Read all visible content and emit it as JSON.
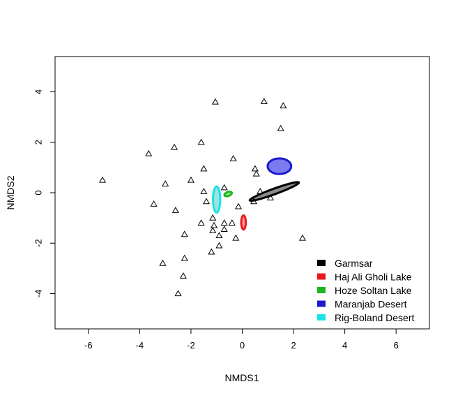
{
  "chart_data": {
    "type": "scatter",
    "xlabel": "NMDS1",
    "ylabel": "NMDS2",
    "xlim": [
      -7.3,
      7.3
    ],
    "ylim": [
      -5.4,
      5.4
    ],
    "xticks": [
      "-6",
      "-4",
      "-2",
      "0",
      "2",
      "4",
      "6"
    ],
    "xtick_values": [
      -6,
      -4,
      -2,
      0,
      2,
      4,
      6
    ],
    "yticks": [
      "-4",
      "-2",
      "0",
      "2",
      "4"
    ],
    "ytick_values": [
      -4,
      -2,
      0,
      2,
      4
    ],
    "grid": false,
    "legend_position": "bottom-right",
    "marker": "open-triangle",
    "points": [
      [
        -1.05,
        3.6
      ],
      [
        0.85,
        3.62
      ],
      [
        1.6,
        3.45
      ],
      [
        1.5,
        2.55
      ],
      [
        -3.65,
        1.55
      ],
      [
        -2.65,
        1.8
      ],
      [
        -1.6,
        2.0
      ],
      [
        -0.35,
        1.35
      ],
      [
        -5.45,
        0.5
      ],
      [
        -3.0,
        0.35
      ],
      [
        -1.5,
        0.95
      ],
      [
        -2.0,
        0.5
      ],
      [
        0.5,
        0.95
      ],
      [
        0.55,
        0.75
      ],
      [
        -0.7,
        0.2
      ],
      [
        0.7,
        0.05
      ],
      [
        -1.5,
        0.05
      ],
      [
        -3.45,
        -0.45
      ],
      [
        -1.4,
        -0.35
      ],
      [
        -0.15,
        -0.55
      ],
      [
        1.1,
        -0.2
      ],
      [
        0.45,
        -0.35
      ],
      [
        -2.6,
        -0.7
      ],
      [
        -1.6,
        -1.2
      ],
      [
        -1.15,
        -1.0
      ],
      [
        -1.1,
        -1.3
      ],
      [
        -0.7,
        -1.2
      ],
      [
        -0.4,
        -1.2
      ],
      [
        -1.15,
        -1.5
      ],
      [
        -0.7,
        -1.45
      ],
      [
        -0.9,
        -1.7
      ],
      [
        -2.25,
        -1.65
      ],
      [
        -0.25,
        -1.8
      ],
      [
        2.35,
        -1.8
      ],
      [
        -0.9,
        -2.1
      ],
      [
        -1.2,
        -2.35
      ],
      [
        -2.25,
        -2.6
      ],
      [
        -3.1,
        -2.8
      ],
      [
        -2.3,
        -3.3
      ],
      [
        -2.5,
        -4.0
      ]
    ],
    "ellipses": [
      {
        "name": "Garmsar",
        "cx": 1.25,
        "cy": 0.05,
        "rx": 1.02,
        "ry": 0.11,
        "angle": -20,
        "fill": "#8c8c8c",
        "stroke": "#000000"
      },
      {
        "name": "Haj Ali Gholi Lake",
        "cx": 0.05,
        "cy": -1.18,
        "rx": 0.09,
        "ry": 0.28,
        "angle": 0,
        "fill": "#ff9a9a",
        "stroke": "#e8191e"
      },
      {
        "name": "Hoze Soltan Lake",
        "cx": -0.55,
        "cy": -0.05,
        "rx": 0.15,
        "ry": 0.08,
        "angle": -20,
        "fill": "#8ee88e",
        "stroke": "#1db51d"
      },
      {
        "name": "Maranjab Desert",
        "cx": 1.45,
        "cy": 1.05,
        "rx": 0.46,
        "ry": 0.31,
        "angle": 0,
        "fill": "#7b7bef",
        "stroke": "#1a1acc"
      },
      {
        "name": "Rig-Boland Desert",
        "cx": -1.0,
        "cy": -0.27,
        "rx": 0.14,
        "ry": 0.52,
        "angle": 0,
        "fill": "#9be3e3",
        "stroke": "#19e3e6"
      }
    ],
    "legend": [
      {
        "label": "Garmsar",
        "color": "#000000"
      },
      {
        "label": "Haj Ali Gholi Lake",
        "color": "#e8191e"
      },
      {
        "label": "Hoze Soltan Lake",
        "color": "#1db51d"
      },
      {
        "label": "Maranjab Desert",
        "color": "#1a1acc"
      },
      {
        "label": "Rig-Boland Desert",
        "color": "#19e3e6"
      }
    ]
  }
}
